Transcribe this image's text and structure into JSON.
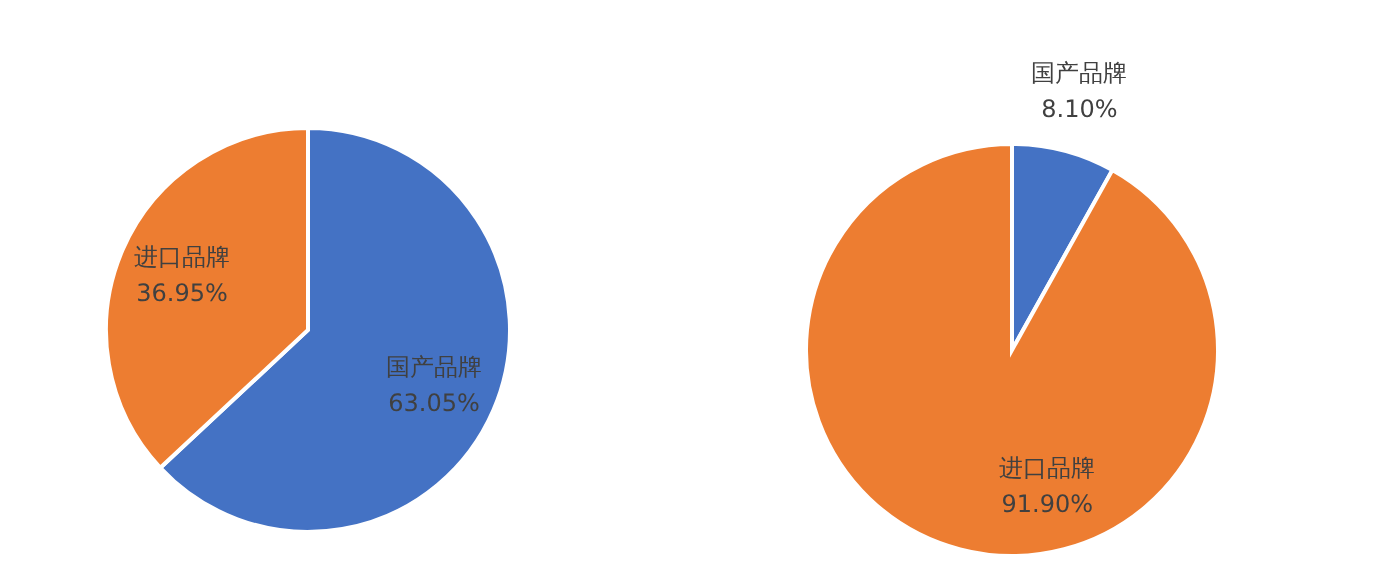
{
  "chart_data": [
    {
      "type": "pie",
      "categories": [
        "国产品牌",
        "进口品牌"
      ],
      "values": [
        63.05,
        36.95
      ],
      "colors": [
        "#4472c4",
        "#ed7d31"
      ],
      "value_labels": [
        "63.05%",
        "36.95%"
      ]
    },
    {
      "type": "pie",
      "categories": [
        "国产品牌",
        "进口品牌"
      ],
      "values": [
        8.1,
        91.9
      ],
      "colors": [
        "#4472c4",
        "#ed7d31"
      ],
      "value_labels": [
        "8.10%",
        "91.90%"
      ]
    }
  ]
}
